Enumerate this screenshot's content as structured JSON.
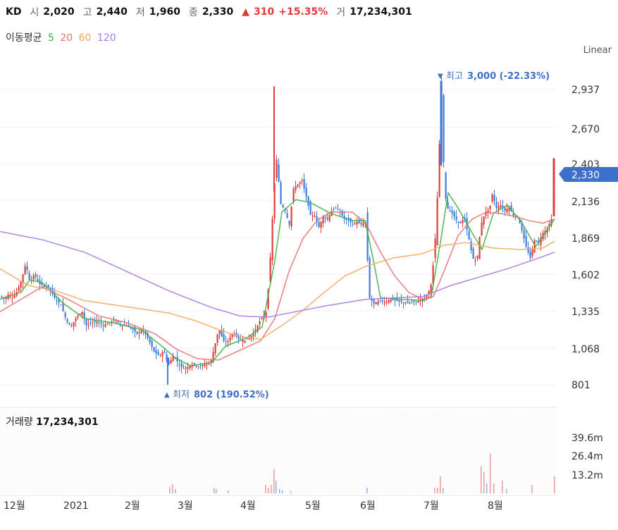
{
  "header": {
    "ticker": "KD",
    "open_label": "시",
    "open": "2,020",
    "high_label": "고",
    "high": "2,440",
    "low_label": "저",
    "low": "1,960",
    "close_label": "종",
    "close": "2,330",
    "change_arrow": "▲",
    "change": "310",
    "change_pct": "+15.35%",
    "volume_label": "거",
    "volume": "17,234,301"
  },
  "ma_legend": {
    "label": "이동평균",
    "items": [
      {
        "period": "5",
        "color": "#3cb043"
      },
      {
        "period": "20",
        "color": "#e8716f"
      },
      {
        "period": "60",
        "color": "#f4a85e"
      },
      {
        "period": "120",
        "color": "#a678e8"
      }
    ]
  },
  "scale_mode": "Linear",
  "price_axis": {
    "ticks": [
      "2,937",
      "2,670",
      "2,403",
      "2,136",
      "1,869",
      "1,602",
      "1,335",
      "1,068",
      "801"
    ],
    "current_price": "2,330"
  },
  "annotations": {
    "high_marker": "▼",
    "high_label": "최고",
    "high_value": "3,000 (-22.33%)",
    "low_marker": "▲",
    "low_label": "최저",
    "low_value": "802 (190.52%)"
  },
  "volume": {
    "title": "거래량",
    "value": "17,234,301",
    "ticks": [
      "39.6m",
      "26.4m",
      "13.2m"
    ]
  },
  "x_axis": {
    "labels": [
      "12월",
      "2021",
      "2월",
      "3월",
      "4월",
      "5월",
      "6월",
      "7월",
      "8월"
    ]
  },
  "chart_data": {
    "type": "candlestick",
    "colors": {
      "up": "#e23b3b",
      "down": "#3b7ddd",
      "ma5": "#3cb043",
      "ma20": "#e8716f",
      "ma60": "#f4a85e",
      "ma120": "#a678e8"
    },
    "y_range": [
      801,
      3070
    ],
    "x_range": [
      "2020-12",
      "2021-08"
    ],
    "close_path": [
      [
        0,
        1440
      ],
      [
        6,
        1420
      ],
      [
        12,
        1460
      ],
      [
        18,
        1430
      ],
      [
        24,
        1480
      ],
      [
        30,
        1560
      ],
      [
        36,
        1680
      ],
      [
        42,
        1540
      ],
      [
        48,
        1600
      ],
      [
        55,
        1530
      ],
      [
        62,
        1520
      ],
      [
        70,
        1500
      ],
      [
        78,
        1420
      ],
      [
        86,
        1380
      ],
      [
        94,
        1260
      ],
      [
        100,
        1220
      ],
      [
        108,
        1290
      ],
      [
        116,
        1330
      ],
      [
        122,
        1230
      ],
      [
        130,
        1250
      ],
      [
        138,
        1260
      ],
      [
        146,
        1230
      ],
      [
        154,
        1250
      ],
      [
        162,
        1270
      ],
      [
        170,
        1240
      ],
      [
        178,
        1230
      ],
      [
        186,
        1210
      ],
      [
        194,
        1170
      ],
      [
        202,
        1200
      ],
      [
        210,
        1130
      ],
      [
        218,
        1040
      ],
      [
        226,
        1010
      ],
      [
        232,
        1050
      ],
      [
        238,
        940
      ],
      [
        246,
        1020
      ],
      [
        252,
        960
      ],
      [
        258,
        920
      ],
      [
        266,
        930
      ],
      [
        274,
        950
      ],
      [
        282,
        930
      ],
      [
        290,
        950
      ],
      [
        298,
        960
      ],
      [
        304,
        1080
      ],
      [
        310,
        1210
      ],
      [
        316,
        1120
      ],
      [
        322,
        1110
      ],
      [
        330,
        1180
      ],
      [
        338,
        1130
      ],
      [
        346,
        1120
      ],
      [
        354,
        1140
      ],
      [
        362,
        1200
      ],
      [
        370,
        1280
      ],
      [
        378,
        1330
      ],
      [
        384,
        1800
      ],
      [
        388,
        2200
      ],
      [
        392,
        2430
      ],
      [
        398,
        2110
      ],
      [
        404,
        2060
      ],
      [
        410,
        1960
      ],
      [
        416,
        2220
      ],
      [
        422,
        2250
      ],
      [
        428,
        2280
      ],
      [
        434,
        2160
      ],
      [
        440,
        2030
      ],
      [
        446,
        2020
      ],
      [
        452,
        1940
      ],
      [
        458,
        2020
      ],
      [
        464,
        2000
      ],
      [
        470,
        2060
      ],
      [
        476,
        2080
      ],
      [
        482,
        2050
      ],
      [
        488,
        2000
      ],
      [
        494,
        1990
      ],
      [
        500,
        1960
      ],
      [
        506,
        1980
      ],
      [
        512,
        1960
      ],
      [
        518,
        1980
      ],
      [
        524,
        1430
      ],
      [
        530,
        1390
      ],
      [
        538,
        1410
      ],
      [
        546,
        1400
      ],
      [
        554,
        1420
      ],
      [
        562,
        1410
      ],
      [
        570,
        1400
      ],
      [
        578,
        1390
      ],
      [
        586,
        1400
      ],
      [
        594,
        1410
      ],
      [
        600,
        1430
      ],
      [
        606,
        1450
      ],
      [
        612,
        1540
      ],
      [
        618,
        1920
      ],
      [
        622,
        2390
      ],
      [
        626,
        2990
      ],
      [
        630,
        2220
      ],
      [
        634,
        2080
      ],
      [
        640,
        2050
      ],
      [
        646,
        2000
      ],
      [
        652,
        1960
      ],
      [
        658,
        2010
      ],
      [
        664,
        1880
      ],
      [
        670,
        1720
      ],
      [
        676,
        1690
      ],
      [
        682,
        1960
      ],
      [
        688,
        2050
      ],
      [
        694,
        2070
      ],
      [
        698,
        2180
      ],
      [
        704,
        2080
      ],
      [
        710,
        2100
      ],
      [
        716,
        2060
      ],
      [
        722,
        2090
      ],
      [
        728,
        2020
      ],
      [
        734,
        2020
      ],
      [
        740,
        1920
      ],
      [
        746,
        1800
      ],
      [
        752,
        1720
      ],
      [
        758,
        1850
      ],
      [
        764,
        1830
      ],
      [
        770,
        1900
      ],
      [
        776,
        1930
      ],
      [
        782,
        2000
      ],
      [
        787,
        2330
      ]
    ],
    "ma5": [
      [
        0,
        1420
      ],
      [
        30,
        1470
      ],
      [
        42,
        1560
      ],
      [
        60,
        1540
      ],
      [
        90,
        1390
      ],
      [
        120,
        1280
      ],
      [
        160,
        1250
      ],
      [
        200,
        1200
      ],
      [
        230,
        1080
      ],
      [
        250,
        990
      ],
      [
        270,
        940
      ],
      [
        300,
        960
      ],
      [
        320,
        1080
      ],
      [
        350,
        1140
      ],
      [
        372,
        1220
      ],
      [
        390,
        1700
      ],
      [
        400,
        2050
      ],
      [
        420,
        2140
      ],
      [
        440,
        2120
      ],
      [
        470,
        2040
      ],
      [
        500,
        1990
      ],
      [
        518,
        1990
      ],
      [
        530,
        1700
      ],
      [
        540,
        1430
      ],
      [
        600,
        1410
      ],
      [
        612,
        1440
      ],
      [
        624,
        1800
      ],
      [
        636,
        2190
      ],
      [
        650,
        2080
      ],
      [
        670,
        1900
      ],
      [
        684,
        1780
      ],
      [
        700,
        2040
      ],
      [
        720,
        2100
      ],
      [
        740,
        1980
      ],
      [
        760,
        1800
      ],
      [
        787,
        2000
      ]
    ],
    "ma20": [
      [
        0,
        1330
      ],
      [
        30,
        1420
      ],
      [
        60,
        1510
      ],
      [
        100,
        1410
      ],
      [
        140,
        1300
      ],
      [
        180,
        1250
      ],
      [
        220,
        1170
      ],
      [
        250,
        1060
      ],
      [
        280,
        990
      ],
      [
        310,
        980
      ],
      [
        340,
        1050
      ],
      [
        370,
        1120
      ],
      [
        390,
        1280
      ],
      [
        410,
        1620
      ],
      [
        430,
        1860
      ],
      [
        450,
        1990
      ],
      [
        470,
        2050
      ],
      [
        500,
        2050
      ],
      [
        520,
        1960
      ],
      [
        540,
        1760
      ],
      [
        560,
        1590
      ],
      [
        580,
        1470
      ],
      [
        600,
        1420
      ],
      [
        615,
        1440
      ],
      [
        630,
        1620
      ],
      [
        650,
        1880
      ],
      [
        670,
        2000
      ],
      [
        690,
        2050
      ],
      [
        710,
        2040
      ],
      [
        730,
        2020
      ],
      [
        750,
        1990
      ],
      [
        770,
        1970
      ],
      [
        787,
        2000
      ]
    ],
    "ma60": [
      [
        0,
        1640
      ],
      [
        40,
        1520
      ],
      [
        80,
        1480
      ],
      [
        120,
        1410
      ],
      [
        160,
        1380
      ],
      [
        200,
        1350
      ],
      [
        240,
        1320
      ],
      [
        280,
        1260
      ],
      [
        310,
        1200
      ],
      [
        340,
        1150
      ],
      [
        370,
        1130
      ],
      [
        400,
        1230
      ],
      [
        430,
        1340
      ],
      [
        460,
        1470
      ],
      [
        490,
        1590
      ],
      [
        520,
        1660
      ],
      [
        560,
        1720
      ],
      [
        600,
        1750
      ],
      [
        630,
        1810
      ],
      [
        660,
        1830
      ],
      [
        700,
        1790
      ],
      [
        740,
        1780
      ],
      [
        770,
        1790
      ],
      [
        787,
        1840
      ]
    ],
    "ma120": [
      [
        0,
        1910
      ],
      [
        60,
        1850
      ],
      [
        120,
        1760
      ],
      [
        180,
        1620
      ],
      [
        240,
        1480
      ],
      [
        300,
        1360
      ],
      [
        340,
        1300
      ],
      [
        380,
        1290
      ],
      [
        420,
        1330
      ],
      [
        460,
        1370
      ],
      [
        520,
        1420
      ],
      [
        560,
        1430
      ],
      [
        600,
        1440
      ],
      [
        640,
        1520
      ],
      [
        680,
        1580
      ],
      [
        720,
        1640
      ],
      [
        760,
        1710
      ],
      [
        787,
        1760
      ]
    ],
    "volume_bars": [
      {
        "x": 240,
        "v": 4.5,
        "up": false
      },
      {
        "x": 244,
        "v": 6.5,
        "up": true
      },
      {
        "x": 248,
        "v": 3,
        "up": false
      },
      {
        "x": 303,
        "v": 4,
        "up": true
      },
      {
        "x": 306,
        "v": 3,
        "up": false
      },
      {
        "x": 323,
        "v": 2,
        "up": false
      },
      {
        "x": 376,
        "v": 6,
        "up": true
      },
      {
        "x": 380,
        "v": 4,
        "up": true
      },
      {
        "x": 384,
        "v": 6,
        "up": true
      },
      {
        "x": 388,
        "v": 17,
        "up": true
      },
      {
        "x": 391,
        "v": 9,
        "up": false
      },
      {
        "x": 396,
        "v": 3,
        "up": false
      },
      {
        "x": 400,
        "v": 2,
        "up": false
      },
      {
        "x": 412,
        "v": 1.5,
        "up": true
      },
      {
        "x": 520,
        "v": 4,
        "up": false
      },
      {
        "x": 616,
        "v": 4,
        "up": true
      },
      {
        "x": 620,
        "v": 4,
        "up": true
      },
      {
        "x": 624,
        "v": 12,
        "up": true
      },
      {
        "x": 628,
        "v": 4,
        "up": false
      },
      {
        "x": 682,
        "v": 19,
        "up": true
      },
      {
        "x": 686,
        "v": 15,
        "up": true
      },
      {
        "x": 690,
        "v": 7,
        "up": false
      },
      {
        "x": 695,
        "v": 28,
        "up": true
      },
      {
        "x": 700,
        "v": 7,
        "up": true
      },
      {
        "x": 712,
        "v": 9,
        "up": true
      },
      {
        "x": 718,
        "v": 3,
        "up": false
      },
      {
        "x": 754,
        "v": 6,
        "up": true
      },
      {
        "x": 786,
        "v": 12,
        "up": true
      }
    ]
  }
}
